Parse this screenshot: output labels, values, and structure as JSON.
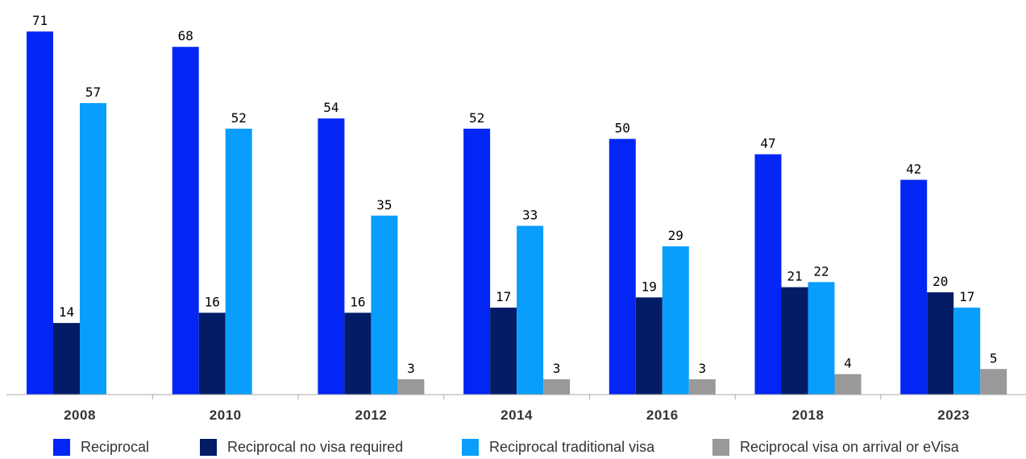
{
  "chart_data": {
    "type": "bar",
    "categories": [
      "2008",
      "2010",
      "2012",
      "2014",
      "2016",
      "2018",
      "2023"
    ],
    "series": [
      {
        "name": "Reciprocal",
        "color": "#0326F5",
        "values": [
          71,
          68,
          54,
          52,
          50,
          47,
          42
        ]
      },
      {
        "name": "Reciprocal no visa required",
        "color": "#031C66",
        "values": [
          14,
          16,
          16,
          17,
          19,
          21,
          20
        ]
      },
      {
        "name": "Reciprocal traditional visa",
        "color": "#0A9EFC",
        "values": [
          57,
          52,
          35,
          33,
          29,
          22,
          17
        ]
      },
      {
        "name": "Reciprocal visa on arrival or eVisa",
        "color": "#999999",
        "values": [
          null,
          null,
          3,
          3,
          3,
          4,
          5
        ]
      }
    ],
    "title": "",
    "xlabel": "",
    "ylabel": "",
    "ylim": [
      0,
      71
    ],
    "grid": false,
    "legend_position": "bottom"
  }
}
